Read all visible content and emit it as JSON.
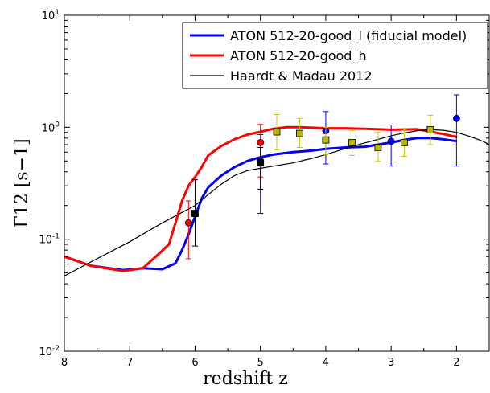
{
  "chart_data": {
    "type": "line",
    "xlabel": "redshift z",
    "ylabel": "Γ12 [s−1]",
    "xlim": [
      8,
      1.5
    ],
    "ylim": [
      0.01,
      10
    ],
    "yscale": "log",
    "grid": false,
    "legend_position": "top-right",
    "x_ticks": [
      {
        "value": 8,
        "label": "8"
      },
      {
        "value": 7,
        "label": "7"
      },
      {
        "value": 6,
        "label": "6"
      },
      {
        "value": 5,
        "label": "5"
      },
      {
        "value": 4,
        "label": "4"
      },
      {
        "value": 3,
        "label": "3"
      },
      {
        "value": 2,
        "label": "2"
      }
    ],
    "y_ticks": [
      {
        "value": 0.01,
        "base": "10",
        "exp": "-2"
      },
      {
        "value": 0.1,
        "base": "10",
        "exp": "-1"
      },
      {
        "value": 1,
        "base": "10",
        "exp": "0"
      },
      {
        "value": 10,
        "base": "10",
        "exp": "1"
      }
    ],
    "series": [
      {
        "name": "ATON 512-20-good_l (fiducial model)",
        "kind": "line",
        "color": "#0000ff",
        "x": [
          8.0,
          7.6,
          7.1,
          6.8,
          6.5,
          6.3,
          6.2,
          6.1,
          6.0,
          5.9,
          5.8,
          5.6,
          5.4,
          5.2,
          5.0,
          4.8,
          4.5,
          4.2,
          4.0,
          3.7,
          3.4,
          3.2,
          3.0,
          2.8,
          2.6,
          2.4,
          2.2,
          2.0
        ],
        "y": [
          0.07,
          0.058,
          0.053,
          0.055,
          0.054,
          0.061,
          0.08,
          0.11,
          0.16,
          0.23,
          0.29,
          0.37,
          0.44,
          0.5,
          0.54,
          0.57,
          0.6,
          0.62,
          0.64,
          0.66,
          0.67,
          0.7,
          0.73,
          0.77,
          0.8,
          0.8,
          0.78,
          0.75
        ]
      },
      {
        "name": "ATON 512-20-good_h",
        "kind": "line",
        "color": "#ff0000",
        "x": [
          8.0,
          7.6,
          7.1,
          6.8,
          6.6,
          6.4,
          6.3,
          6.2,
          6.1,
          6.0,
          5.9,
          5.8,
          5.6,
          5.4,
          5.2,
          5.0,
          4.8,
          4.6,
          4.4,
          4.2,
          4.0,
          3.7,
          3.4,
          3.0,
          2.6,
          2.2,
          2.0
        ],
        "y": [
          0.07,
          0.058,
          0.052,
          0.055,
          0.07,
          0.09,
          0.14,
          0.22,
          0.3,
          0.36,
          0.44,
          0.56,
          0.68,
          0.78,
          0.86,
          0.91,
          0.97,
          1.0,
          1.0,
          0.99,
          0.98,
          0.98,
          0.97,
          0.95,
          0.96,
          0.87,
          0.82
        ]
      },
      {
        "name": "Haardt & Madau 2012",
        "kind": "line",
        "color": "#000000",
        "x": [
          8.0,
          7.5,
          7.0,
          6.5,
          6.0,
          5.8,
          5.6,
          5.4,
          5.2,
          5.0,
          4.8,
          4.5,
          4.2,
          4.0,
          3.8,
          3.5,
          3.2,
          3.0,
          2.8,
          2.6,
          2.4,
          2.2,
          2.0,
          1.8,
          1.6,
          1.5
        ],
        "y": [
          0.047,
          0.067,
          0.095,
          0.14,
          0.2,
          0.25,
          0.31,
          0.37,
          0.41,
          0.43,
          0.45,
          0.48,
          0.53,
          0.57,
          0.62,
          0.7,
          0.78,
          0.84,
          0.89,
          0.93,
          0.95,
          0.94,
          0.9,
          0.83,
          0.75,
          0.7
        ]
      }
    ],
    "observations": [
      {
        "marker": "circle",
        "face": "#0000ff",
        "err": "#0000ff",
        "points": [
          {
            "x": 5.0,
            "y": 0.5,
            "lo": 0.17,
            "hi": 0.86
          },
          {
            "x": 4.0,
            "y": 0.93,
            "lo": 0.47,
            "hi": 1.38
          },
          {
            "x": 3.0,
            "y": 0.75,
            "lo": 0.45,
            "hi": 1.05
          },
          {
            "x": 2.0,
            "y": 1.2,
            "lo": 0.45,
            "hi": 1.95
          }
        ]
      },
      {
        "marker": "circle",
        "face": "#ff0000",
        "err": "#ff0000",
        "points": [
          {
            "x": 6.1,
            "y": 0.14,
            "lo": 0.067,
            "hi": 0.22
          },
          {
            "x": 5.0,
            "y": 0.73,
            "lo": 0.36,
            "hi": 1.06
          }
        ]
      },
      {
        "marker": "square",
        "face": "#000000",
        "err": "#000000",
        "points": [
          {
            "x": 6.0,
            "y": 0.17,
            "lo": 0.087,
            "hi": 0.34
          },
          {
            "x": 5.0,
            "y": 0.48,
            "lo": 0.28,
            "hi": 0.66
          }
        ]
      },
      {
        "marker": "square",
        "face": "#b8b800",
        "err": "#c8c800",
        "points": [
          {
            "x": 4.75,
            "y": 0.91,
            "lo": 0.63,
            "hi": 1.3
          },
          {
            "x": 4.4,
            "y": 0.88,
            "lo": 0.66,
            "hi": 1.2
          },
          {
            "x": 4.0,
            "y": 0.77,
            "lo": 0.57,
            "hi": 1.0
          },
          {
            "x": 3.6,
            "y": 0.73,
            "lo": 0.56,
            "hi": 0.93
          },
          {
            "x": 3.2,
            "y": 0.66,
            "lo": 0.5,
            "hi": 0.9
          },
          {
            "x": 2.8,
            "y": 0.73,
            "lo": 0.55,
            "hi": 0.96
          },
          {
            "x": 2.4,
            "y": 0.95,
            "lo": 0.7,
            "hi": 1.28
          }
        ]
      }
    ]
  }
}
